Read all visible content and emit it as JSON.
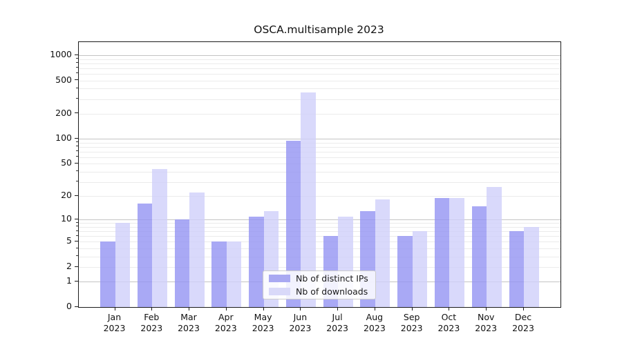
{
  "title": "OSCA.multisample 2023",
  "legend": {
    "items": [
      {
        "label": "Nb of distinct IPs",
        "color": "#a9a9f2"
      },
      {
        "label": "Nb of downloads",
        "color": "#d9d9f9"
      }
    ]
  },
  "chart_data": {
    "type": "bar",
    "title": "OSCA.multisample 2023",
    "categories": [
      "Jan 2023",
      "Feb 2023",
      "Mar 2023",
      "Apr 2023",
      "May 2023",
      "Jun 2023",
      "Jul 2023",
      "Aug 2023",
      "Sep 2023",
      "Oct 2023",
      "Nov 2023",
      "Dec 2023"
    ],
    "series": [
      {
        "name": "Nb of distinct IPs",
        "fill": "rgba(148,148,242,0.8)",
        "swatch": "#a9a9f2",
        "values": [
          5,
          16,
          10,
          5,
          11,
          95,
          6,
          13,
          6,
          19,
          15,
          7
        ]
      },
      {
        "name": "Nb of downloads",
        "fill": "rgba(208,208,250,0.8)",
        "swatch": "#d9d9f9",
        "values": [
          9,
          43,
          22,
          5,
          13,
          360,
          11,
          18,
          7,
          19,
          26,
          8
        ]
      }
    ],
    "xlabel": "",
    "ylabel": "",
    "yscale": "log1p",
    "ylim": [
      0,
      1400
    ],
    "yticks": [
      0,
      1,
      2,
      5,
      10,
      20,
      50,
      100,
      200,
      500,
      1000
    ],
    "major_gridlines": [
      1,
      10,
      100,
      1000
    ],
    "minor_gridlines": [
      2,
      3,
      4,
      5,
      6,
      7,
      8,
      9,
      20,
      30,
      40,
      50,
      60,
      70,
      80,
      90,
      200,
      300,
      400,
      500,
      600,
      700,
      800,
      900
    ],
    "grid": "horizontal",
    "legend_position": "lower center inside"
  }
}
